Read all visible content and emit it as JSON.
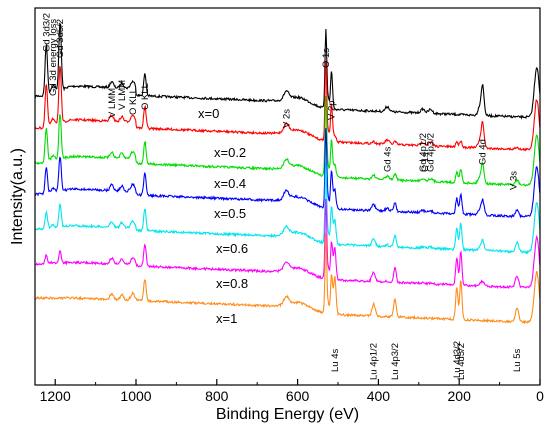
{
  "chart_data": {
    "type": "line",
    "title": "",
    "xlabel": "Binding Energy (eV)",
    "ylabel": "Intensity(a.u.)",
    "xlim": [
      1250,
      0
    ],
    "x_reversed": true,
    "xticks": [
      1200,
      1000,
      800,
      600,
      400,
      200,
      0
    ],
    "y_ticks_shown": false,
    "grid": false,
    "legend": "none (series labelled inline above each curve)",
    "series": [
      {
        "name": "x=0",
        "color": "#000000"
      },
      {
        "name": "x=0.2",
        "color": "#ff0000"
      },
      {
        "name": "x=0.4",
        "color": "#00dd00"
      },
      {
        "name": "x=0.5",
        "color": "#0000ff"
      },
      {
        "name": "x=0.6",
        "color": "#00e5ee"
      },
      {
        "name": "x=0.8",
        "color": "#ff00ff"
      },
      {
        "name": "x=1",
        "color": "#ff8c1a"
      }
    ],
    "annotations": [
      {
        "text": "Gd 3d3/2",
        "x": 1222
      },
      {
        "text": "Gd 3d energy loss",
        "x": 1205
      },
      {
        "text": "Gd 3d5/2",
        "x": 1188
      },
      {
        "text": "V LMM",
        "x": 1060
      },
      {
        "text": "V LMM",
        "x": 1035
      },
      {
        "text": "O KLL",
        "x": 1008
      },
      {
        "text": "O KLL",
        "x": 978
      },
      {
        "text": "V 2s",
        "x": 628
      },
      {
        "text": "O 1s",
        "x": 530
      },
      {
        "text": "V 2p",
        "x": 516
      },
      {
        "text": "Gd 4s",
        "x": 378
      },
      {
        "text": "Gd 4p1/2",
        "x": 290
      },
      {
        "text": "C 1s",
        "x": 285
      },
      {
        "text": "Gd 4p3/2",
        "x": 271
      },
      {
        "text": "Gd 4d",
        "x": 142
      },
      {
        "text": "V 3s",
        "x": 66
      },
      {
        "text": "Lu 4s",
        "x": 508
      },
      {
        "text": "Lu 4p1/2",
        "x": 412
      },
      {
        "text": "Lu 4p3/2",
        "x": 359
      },
      {
        "text": "Lu 4d3/2",
        "x": 206
      },
      {
        "text": "Lu 4d5/2",
        "x": 196
      },
      {
        "text": "Lu 5s",
        "x": 57
      }
    ]
  }
}
